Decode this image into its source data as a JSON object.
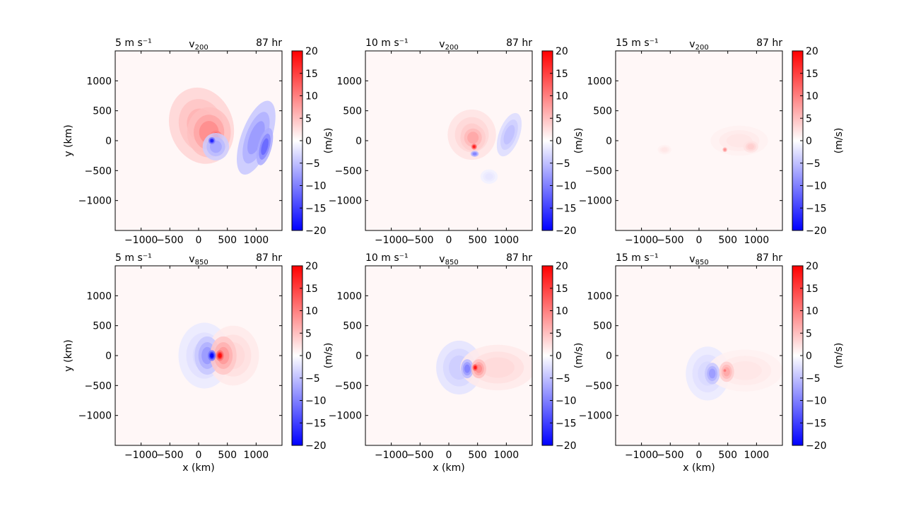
{
  "chart_data": {
    "type": "heatmap",
    "colorbar": {
      "ticks": [
        "20",
        "15",
        "10",
        "5",
        "0",
        "−5",
        "−10",
        "−15",
        "−20"
      ],
      "range": [
        -20,
        20
      ],
      "label": "(m/s)",
      "colors": {
        "max": "#ff0000",
        "mid": "#ffffff",
        "min": "#0000ff"
      }
    },
    "x_ticks": [
      "−1000",
      "−500",
      "0",
      "500",
      "1000"
    ],
    "y_ticks": [
      "1000",
      "500",
      "0",
      "−500",
      "−1000"
    ],
    "x_range_km": [
      -1450,
      1450
    ],
    "y_range_km": [
      -1500,
      1500
    ],
    "xlabel": "x (km)",
    "ylabel": "y (km)",
    "panels": [
      {
        "left": "5 m s⁻¹",
        "center_base": "v",
        "center_sub": "200",
        "right": "87 hr",
        "features": [
          {
            "x": 50,
            "y": 250,
            "rx": 550,
            "ry": 650,
            "rot": -20,
            "v": 6
          },
          {
            "x": 180,
            "y": 140,
            "rx": 380,
            "ry": 420,
            "rot": 0,
            "v": 9
          },
          {
            "x": 300,
            "y": 60,
            "rx": 110,
            "ry": 110,
            "rot": 0,
            "v": 18
          },
          {
            "x": 1000,
            "y": 50,
            "rx": 260,
            "ry": 650,
            "rot": 20,
            "v": -8
          },
          {
            "x": 1150,
            "y": -100,
            "rx": 120,
            "ry": 320,
            "rot": 15,
            "v": -12
          },
          {
            "x": 300,
            "y": -100,
            "rx": 230,
            "ry": 230,
            "rot": 0,
            "v": -7
          },
          {
            "x": 230,
            "y": 0,
            "rx": 60,
            "ry": 60,
            "rot": 0,
            "v": -18
          }
        ]
      },
      {
        "left": "10 m s⁻¹",
        "center_base": "v",
        "center_sub": "200",
        "right": "87 hr",
        "features": [
          {
            "x": 400,
            "y": 100,
            "rx": 420,
            "ry": 420,
            "rot": 0,
            "v": 4
          },
          {
            "x": 420,
            "y": 50,
            "rx": 220,
            "ry": 220,
            "rot": 0,
            "v": 7
          },
          {
            "x": 440,
            "y": -100,
            "rx": 50,
            "ry": 50,
            "rot": 0,
            "v": 18
          },
          {
            "x": 1050,
            "y": 100,
            "rx": 180,
            "ry": 380,
            "rot": 20,
            "v": -5
          },
          {
            "x": 450,
            "y": -220,
            "rx": 70,
            "ry": 50,
            "rot": 0,
            "v": -10
          },
          {
            "x": 700,
            "y": -600,
            "rx": 150,
            "ry": 120,
            "rot": 0,
            "v": -2
          }
        ]
      },
      {
        "left": "15 m s⁻¹",
        "center_base": "v",
        "center_sub": "200",
        "right": "87 hr",
        "features": [
          {
            "x": 700,
            "y": 0,
            "rx": 500,
            "ry": 250,
            "rot": 0,
            "v": 2
          },
          {
            "x": 450,
            "y": -150,
            "rx": 40,
            "ry": 40,
            "rot": 0,
            "v": 9
          },
          {
            "x": 900,
            "y": -100,
            "rx": 130,
            "ry": 100,
            "rot": 0,
            "v": 4
          },
          {
            "x": -600,
            "y": -150,
            "rx": 120,
            "ry": 80,
            "rot": 0,
            "v": 2
          }
        ]
      },
      {
        "left": "5 m s⁻¹",
        "center_base": "v",
        "center_sub": "850",
        "right": "87 hr",
        "features": [
          {
            "x": 100,
            "y": 0,
            "rx": 450,
            "ry": 550,
            "rot": 0,
            "v": -3
          },
          {
            "x": 600,
            "y": 0,
            "rx": 450,
            "ry": 500,
            "rot": 0,
            "v": 3
          },
          {
            "x": 150,
            "y": 0,
            "rx": 220,
            "ry": 320,
            "rot": 0,
            "v": -8
          },
          {
            "x": 430,
            "y": 0,
            "rx": 230,
            "ry": 320,
            "rot": 0,
            "v": 8
          },
          {
            "x": 230,
            "y": 0,
            "rx": 70,
            "ry": 90,
            "rot": 0,
            "v": -20
          },
          {
            "x": 370,
            "y": 0,
            "rx": 70,
            "ry": 90,
            "rot": 0,
            "v": 20
          }
        ]
      },
      {
        "left": "10 m s⁻¹",
        "center_base": "v",
        "center_sub": "850",
        "right": "87 hr",
        "features": [
          {
            "x": 180,
            "y": -200,
            "rx": 400,
            "ry": 450,
            "rot": 0,
            "v": -4
          },
          {
            "x": 850,
            "y": -200,
            "rx": 650,
            "ry": 380,
            "rot": 0,
            "v": 3
          },
          {
            "x": 320,
            "y": -220,
            "rx": 110,
            "ry": 160,
            "rot": 0,
            "v": -10
          },
          {
            "x": 520,
            "y": -220,
            "rx": 130,
            "ry": 160,
            "rot": 0,
            "v": 9
          },
          {
            "x": 460,
            "y": -200,
            "rx": 50,
            "ry": 60,
            "rot": 0,
            "v": 19
          }
        ]
      },
      {
        "left": "15 m s⁻¹",
        "center_base": "v",
        "center_sub": "850",
        "right": "87 hr",
        "features": [
          {
            "x": 150,
            "y": -300,
            "rx": 380,
            "ry": 450,
            "rot": 0,
            "v": -3
          },
          {
            "x": 800,
            "y": -250,
            "rx": 650,
            "ry": 350,
            "rot": 0,
            "v": 2
          },
          {
            "x": 230,
            "y": -300,
            "rx": 130,
            "ry": 180,
            "rot": 0,
            "v": -8
          },
          {
            "x": 480,
            "y": -270,
            "rx": 130,
            "ry": 170,
            "rot": 0,
            "v": 7
          },
          {
            "x": 450,
            "y": -250,
            "rx": 40,
            "ry": 40,
            "rot": 0,
            "v": 11
          }
        ]
      }
    ]
  }
}
